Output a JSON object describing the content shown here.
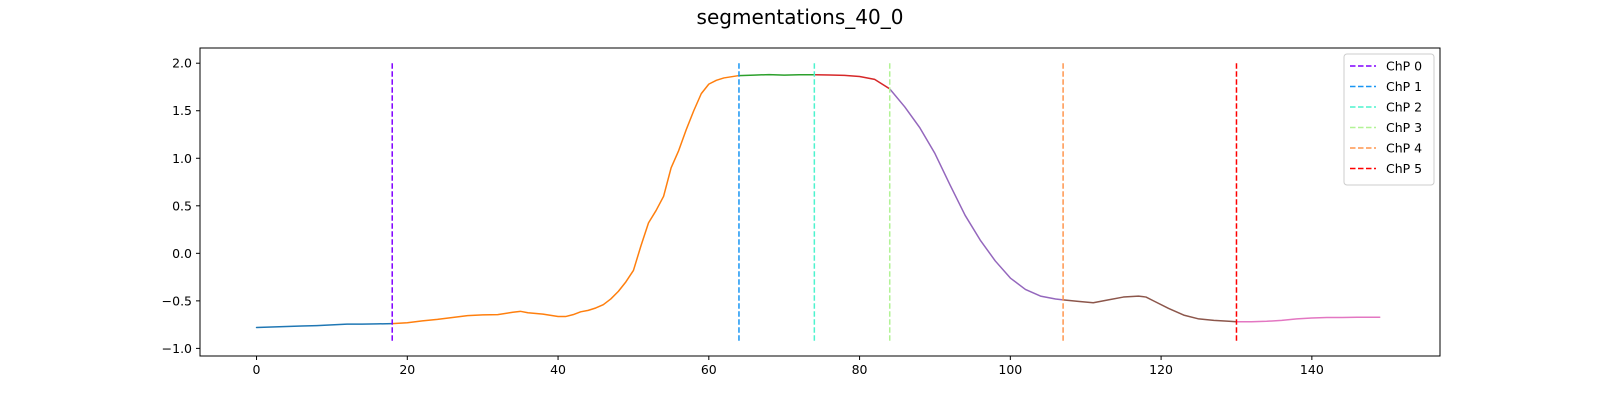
{
  "chart_data": {
    "type": "line",
    "title": "segmentations_40_0",
    "xlabel": "",
    "ylabel": "",
    "xlim": [
      -7.5,
      157
    ],
    "ylim": [
      -1.08,
      2.16
    ],
    "x_ticks": [
      0,
      20,
      40,
      60,
      80,
      100,
      120,
      140
    ],
    "y_ticks": [
      -1.0,
      -0.5,
      0.0,
      0.5,
      1.0,
      1.5,
      2.0
    ],
    "y_tick_labels": [
      "−1.0",
      "−0.5",
      "0.0",
      "0.5",
      "1.0",
      "1.5",
      "2.0"
    ],
    "grid": false,
    "legend_position": "top-right",
    "series": [
      {
        "color": "#1f77b4",
        "points": [
          [
            0,
            -0.78
          ],
          [
            2,
            -0.775
          ],
          [
            4,
            -0.77
          ],
          [
            6,
            -0.765
          ],
          [
            8,
            -0.76
          ],
          [
            10,
            -0.752
          ],
          [
            12,
            -0.745
          ],
          [
            14,
            -0.745
          ],
          [
            16,
            -0.742
          ],
          [
            18,
            -0.74
          ]
        ]
      },
      {
        "color": "#ff7f0e",
        "points": [
          [
            18,
            -0.74
          ],
          [
            20,
            -0.73
          ],
          [
            22,
            -0.71
          ],
          [
            24,
            -0.695
          ],
          [
            26,
            -0.675
          ],
          [
            28,
            -0.655
          ],
          [
            30,
            -0.648
          ],
          [
            32,
            -0.645
          ],
          [
            34,
            -0.62
          ],
          [
            35,
            -0.61
          ],
          [
            36,
            -0.625
          ],
          [
            38,
            -0.64
          ],
          [
            40,
            -0.665
          ],
          [
            41,
            -0.665
          ],
          [
            42,
            -0.645
          ],
          [
            43,
            -0.615
          ],
          [
            44,
            -0.6
          ],
          [
            45,
            -0.575
          ],
          [
            46,
            -0.54
          ],
          [
            47,
            -0.48
          ],
          [
            48,
            -0.4
          ],
          [
            49,
            -0.3
          ],
          [
            50,
            -0.18
          ],
          [
            51,
            0.08
          ],
          [
            52,
            0.32
          ],
          [
            53,
            0.45
          ],
          [
            54,
            0.6
          ],
          [
            55,
            0.9
          ],
          [
            56,
            1.08
          ],
          [
            57,
            1.3
          ],
          [
            58,
            1.5
          ],
          [
            59,
            1.68
          ],
          [
            60,
            1.78
          ],
          [
            61,
            1.82
          ],
          [
            62,
            1.845
          ],
          [
            64,
            1.87
          ]
        ]
      },
      {
        "color": "#2ca02c",
        "points": [
          [
            64,
            1.87
          ],
          [
            66,
            1.875
          ],
          [
            68,
            1.88
          ],
          [
            70,
            1.875
          ],
          [
            72,
            1.878
          ],
          [
            74,
            1.878
          ]
        ]
      },
      {
        "color": "#d62728",
        "points": [
          [
            74,
            1.878
          ],
          [
            76,
            1.876
          ],
          [
            78,
            1.872
          ],
          [
            80,
            1.86
          ],
          [
            82,
            1.83
          ],
          [
            84,
            1.73
          ]
        ]
      },
      {
        "color": "#9467bd",
        "points": [
          [
            84,
            1.73
          ],
          [
            86,
            1.54
          ],
          [
            88,
            1.32
          ],
          [
            90,
            1.05
          ],
          [
            92,
            0.72
          ],
          [
            94,
            0.4
          ],
          [
            96,
            0.14
          ],
          [
            98,
            -0.08
          ],
          [
            100,
            -0.26
          ],
          [
            102,
            -0.38
          ],
          [
            104,
            -0.45
          ],
          [
            106,
            -0.48
          ],
          [
            107,
            -0.49
          ]
        ]
      },
      {
        "color": "#8c564b",
        "points": [
          [
            107,
            -0.49
          ],
          [
            109,
            -0.505
          ],
          [
            111,
            -0.52
          ],
          [
            113,
            -0.49
          ],
          [
            115,
            -0.46
          ],
          [
            117,
            -0.45
          ],
          [
            118,
            -0.46
          ],
          [
            119,
            -0.5
          ],
          [
            121,
            -0.58
          ],
          [
            123,
            -0.65
          ],
          [
            125,
            -0.69
          ],
          [
            127,
            -0.705
          ],
          [
            129,
            -0.715
          ],
          [
            130,
            -0.72
          ]
        ]
      },
      {
        "color": "#e377c2",
        "points": [
          [
            130,
            -0.72
          ],
          [
            132,
            -0.72
          ],
          [
            134,
            -0.715
          ],
          [
            136,
            -0.705
          ],
          [
            138,
            -0.69
          ],
          [
            140,
            -0.68
          ],
          [
            142,
            -0.675
          ],
          [
            144,
            -0.675
          ],
          [
            146,
            -0.673
          ],
          [
            149,
            -0.672
          ]
        ]
      }
    ],
    "change_points": [
      {
        "label": "ChP 0",
        "x": 18,
        "color": "#8000ff"
      },
      {
        "label": "ChP 1",
        "x": 64,
        "color": "#1996f3"
      },
      {
        "label": "ChP 2",
        "x": 74,
        "color": "#4df3ce"
      },
      {
        "label": "ChP 3",
        "x": 84,
        "color": "#b2f396"
      },
      {
        "label": "ChP 4",
        "x": 107,
        "color": "#ff964f"
      },
      {
        "label": "ChP 5",
        "x": 130,
        "color": "#ff0000"
      }
    ]
  }
}
